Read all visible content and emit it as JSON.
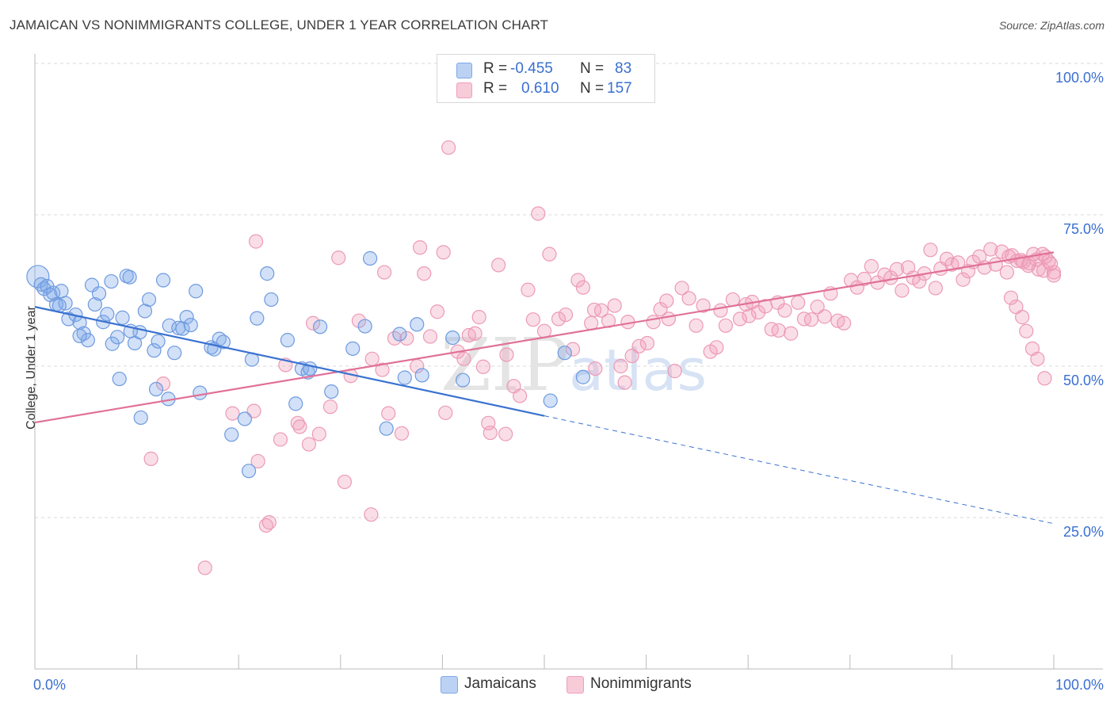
{
  "title": "JAMAICAN VS NONIMMIGRANTS COLLEGE, UNDER 1 YEAR CORRELATION CHART",
  "source": "Source: ZipAtlas.com",
  "watermark": {
    "zip": "ZIP",
    "atlas": "atlas"
  },
  "legend": {
    "series1": {
      "r_label": "R =",
      "r_value": "-0.455",
      "n_label": "N =",
      "n_value": "83"
    },
    "series2": {
      "r_label": "R =",
      "r_value": "0.610",
      "n_label": "N =",
      "n_value": "157"
    }
  },
  "chart_data": {
    "type": "scatter",
    "title": "JAMAICAN VS NONIMMIGRANTS COLLEGE, UNDER 1 YEAR CORRELATION CHART",
    "xlabel": "",
    "ylabel": "College, Under 1 year",
    "xlim": [
      0,
      100
    ],
    "ylim": [
      0,
      100
    ],
    "x_tick_labels": [
      "0.0%",
      "100.0%"
    ],
    "y_tick_labels": [
      "100.0%",
      "75.0%",
      "50.0%",
      "25.0%"
    ],
    "y_ticks": [
      100,
      75,
      50,
      25
    ],
    "colors": {
      "jamaicans": "#7fa8e8",
      "nonimmigrants": "#f0a0bb",
      "blue_line": "#3a72d0",
      "pink_line": "#e07198",
      "tick_text": "#3a6fd0"
    },
    "series": [
      {
        "name": "Jamaicans",
        "color": "#7fa8e8",
        "trend": {
          "x0": 0,
          "y0": 59.8,
          "x1": 50,
          "y1": 41.8,
          "dash_to_x": 100,
          "dash_to_y": 24
        },
        "points": [
          [
            0.3,
            64.8
          ],
          [
            0.6,
            63.5
          ],
          [
            0.9,
            62.8
          ],
          [
            1.2,
            63.2
          ],
          [
            1.5,
            61.8
          ],
          [
            1.8,
            62.1
          ],
          [
            2.1,
            60.2
          ],
          [
            2.6,
            62.4
          ],
          [
            3.0,
            60.4
          ],
          [
            3.3,
            57.8
          ],
          [
            4.0,
            58.5
          ],
          [
            4.4,
            57.2
          ],
          [
            4.8,
            55.4
          ],
          [
            5.2,
            54.3
          ],
          [
            5.6,
            63.4
          ],
          [
            5.9,
            60.2
          ],
          [
            6.3,
            62.0
          ],
          [
            6.7,
            57.3
          ],
          [
            7.1,
            58.6
          ],
          [
            7.6,
            53.7
          ],
          [
            8.1,
            54.8
          ],
          [
            8.6,
            58.0
          ],
          [
            9.0,
            64.9
          ],
          [
            9.3,
            64.7
          ],
          [
            9.8,
            53.8
          ],
          [
            10.3,
            55.6
          ],
          [
            10.8,
            59.1
          ],
          [
            11.2,
            61.0
          ],
          [
            11.7,
            52.6
          ],
          [
            12.1,
            54.1
          ],
          [
            12.6,
            64.2
          ],
          [
            13.2,
            56.7
          ],
          [
            13.7,
            52.2
          ],
          [
            14.1,
            56.3
          ],
          [
            14.5,
            56.2
          ],
          [
            14.9,
            58.1
          ],
          [
            15.3,
            56.8
          ],
          [
            15.8,
            62.4
          ],
          [
            16.2,
            45.6
          ],
          [
            17.3,
            53.1
          ],
          [
            17.6,
            52.8
          ],
          [
            18.1,
            54.5
          ],
          [
            18.5,
            54.0
          ],
          [
            19.3,
            38.7
          ],
          [
            20.6,
            41.3
          ],
          [
            21.0,
            32.7
          ],
          [
            21.3,
            51.1
          ],
          [
            21.8,
            57.9
          ],
          [
            22.8,
            65.3
          ],
          [
            23.2,
            61.0
          ],
          [
            24.8,
            54.3
          ],
          [
            25.6,
            43.8
          ],
          [
            26.2,
            49.6
          ],
          [
            26.8,
            49.0
          ],
          [
            27.0,
            49.6
          ],
          [
            28.0,
            56.5
          ],
          [
            29.1,
            45.8
          ],
          [
            31.2,
            52.9
          ],
          [
            32.4,
            56.6
          ],
          [
            32.9,
            67.8
          ],
          [
            34.5,
            39.7
          ],
          [
            35.8,
            55.3
          ],
          [
            36.3,
            48.1
          ],
          [
            37.5,
            56.9
          ],
          [
            38.0,
            48.5
          ],
          [
            41.0,
            54.7
          ],
          [
            42.0,
            47.7
          ],
          [
            50.6,
            44.3
          ],
          [
            52.0,
            52.2
          ],
          [
            53.8,
            48.2
          ],
          [
            2.4,
            60.0
          ],
          [
            8.3,
            47.9
          ],
          [
            9.4,
            55.8
          ],
          [
            10.4,
            41.5
          ],
          [
            13.1,
            44.6
          ],
          [
            11.9,
            46.2
          ],
          [
            7.5,
            64.0
          ],
          [
            4.4,
            55.0
          ]
        ]
      },
      {
        "name": "Nonimmigrants",
        "color": "#f0a0bb",
        "trend": {
          "x0": 0,
          "y0": 40.7,
          "x1": 100,
          "y1": 68.8
        },
        "points": [
          [
            11.4,
            34.7
          ],
          [
            12.6,
            47.1
          ],
          [
            16.7,
            16.7
          ],
          [
            19.4,
            42.2
          ],
          [
            21.5,
            42.6
          ],
          [
            21.7,
            70.6
          ],
          [
            21.9,
            34.3
          ],
          [
            22.7,
            23.7
          ],
          [
            23.0,
            24.2
          ],
          [
            24.1,
            37.9
          ],
          [
            24.6,
            50.2
          ],
          [
            25.8,
            40.6
          ],
          [
            26.0,
            40.0
          ],
          [
            26.9,
            37.1
          ],
          [
            27.3,
            57.1
          ],
          [
            27.9,
            38.8
          ],
          [
            29.0,
            43.3
          ],
          [
            29.8,
            67.9
          ],
          [
            30.4,
            30.9
          ],
          [
            31.0,
            48.4
          ],
          [
            31.8,
            57.5
          ],
          [
            33.0,
            25.5
          ],
          [
            33.1,
            51.2
          ],
          [
            34.1,
            49.4
          ],
          [
            34.3,
            65.5
          ],
          [
            34.7,
            42.2
          ],
          [
            35.3,
            54.6
          ],
          [
            36.0,
            38.9
          ],
          [
            36.5,
            54.6
          ],
          [
            37.5,
            50.0
          ],
          [
            37.8,
            69.6
          ],
          [
            38.2,
            65.3
          ],
          [
            38.8,
            54.9
          ],
          [
            39.5,
            59.0
          ],
          [
            40.1,
            68.8
          ],
          [
            40.3,
            42.3
          ],
          [
            40.6,
            86.1
          ],
          [
            41.5,
            52.4
          ],
          [
            42.1,
            51.2
          ],
          [
            42.6,
            55.1
          ],
          [
            43.2,
            55.4
          ],
          [
            43.6,
            58.1
          ],
          [
            44.0,
            49.9
          ],
          [
            44.7,
            39.0
          ],
          [
            45.5,
            66.7
          ],
          [
            46.3,
            51.9
          ],
          [
            47.0,
            46.7
          ],
          [
            47.6,
            45.1
          ],
          [
            48.4,
            62.6
          ],
          [
            48.9,
            57.7
          ],
          [
            49.4,
            75.2
          ],
          [
            50.0,
            55.8
          ],
          [
            50.5,
            68.5
          ],
          [
            51.4,
            57.8
          ],
          [
            52.1,
            58.5
          ],
          [
            52.8,
            52.8
          ],
          [
            53.3,
            64.2
          ],
          [
            53.8,
            63.0
          ],
          [
            54.6,
            57.1
          ],
          [
            54.9,
            59.3
          ],
          [
            55.6,
            59.2
          ],
          [
            56.3,
            57.5
          ],
          [
            56.9,
            60.0
          ],
          [
            57.5,
            50.0
          ],
          [
            57.9,
            47.3
          ],
          [
            58.2,
            57.3
          ],
          [
            58.6,
            51.7
          ],
          [
            59.3,
            53.3
          ],
          [
            60.1,
            53.8
          ],
          [
            60.7,
            57.3
          ],
          [
            61.4,
            59.4
          ],
          [
            62.2,
            57.8
          ],
          [
            62.8,
            49.2
          ],
          [
            63.5,
            62.9
          ],
          [
            64.2,
            61.2
          ],
          [
            64.9,
            56.7
          ],
          [
            65.6,
            60.0
          ],
          [
            66.3,
            52.4
          ],
          [
            66.9,
            53.1
          ],
          [
            67.3,
            59.2
          ],
          [
            67.8,
            56.7
          ],
          [
            68.5,
            61.0
          ],
          [
            69.2,
            57.8
          ],
          [
            69.8,
            60.2
          ],
          [
            70.4,
            60.6
          ],
          [
            71.0,
            58.9
          ],
          [
            71.7,
            59.9
          ],
          [
            72.3,
            56.1
          ],
          [
            72.9,
            60.5
          ],
          [
            73.6,
            59.2
          ],
          [
            74.2,
            55.4
          ],
          [
            74.9,
            60.5
          ],
          [
            75.5,
            57.8
          ],
          [
            76.2,
            57.7
          ],
          [
            76.8,
            59.8
          ],
          [
            77.5,
            58.2
          ],
          [
            78.1,
            62.0
          ],
          [
            78.8,
            57.5
          ],
          [
            79.4,
            57.1
          ],
          [
            80.1,
            64.2
          ],
          [
            80.7,
            63.0
          ],
          [
            81.4,
            64.4
          ],
          [
            82.1,
            66.5
          ],
          [
            82.7,
            63.8
          ],
          [
            83.4,
            65.1
          ],
          [
            84.0,
            64.6
          ],
          [
            84.6,
            66.0
          ],
          [
            85.1,
            62.5
          ],
          [
            85.7,
            66.3
          ],
          [
            86.2,
            64.6
          ],
          [
            86.8,
            64.0
          ],
          [
            87.3,
            65.3
          ],
          [
            87.9,
            69.2
          ],
          [
            88.4,
            62.9
          ],
          [
            88.9,
            66.1
          ],
          [
            89.5,
            67.7
          ],
          [
            90.0,
            66.8
          ],
          [
            90.6,
            67.1
          ],
          [
            91.1,
            64.3
          ],
          [
            91.6,
            65.7
          ],
          [
            92.1,
            67.2
          ],
          [
            92.7,
            68.1
          ],
          [
            93.2,
            66.3
          ],
          [
            93.8,
            69.3
          ],
          [
            94.3,
            66.8
          ],
          [
            94.9,
            68.9
          ],
          [
            95.4,
            65.5
          ],
          [
            95.9,
            68.3
          ],
          [
            96.4,
            67.4
          ],
          [
            97.0,
            67.2
          ],
          [
            97.5,
            66.6
          ],
          [
            98.0,
            68.5
          ],
          [
            98.5,
            66.0
          ],
          [
            99.0,
            65.8
          ],
          [
            99.5,
            67.3
          ],
          [
            100.0,
            65.5
          ],
          [
            95.6,
            68.1
          ],
          [
            96.8,
            67.5
          ],
          [
            97.6,
            67.0
          ],
          [
            98.3,
            67.6
          ],
          [
            98.9,
            68.5
          ],
          [
            99.2,
            68.1
          ],
          [
            99.7,
            66.9
          ],
          [
            100.0,
            65.0
          ],
          [
            95.8,
            61.3
          ],
          [
            96.3,
            59.8
          ],
          [
            96.9,
            58.1
          ],
          [
            97.3,
            55.8
          ],
          [
            97.9,
            52.9
          ],
          [
            98.4,
            51.2
          ],
          [
            99.1,
            48.0
          ],
          [
            70.1,
            58.3
          ],
          [
            73.0,
            55.9
          ],
          [
            62.0,
            60.8
          ],
          [
            55.0,
            49.6
          ],
          [
            46.2,
            38.8
          ],
          [
            44.5,
            40.6
          ]
        ]
      }
    ]
  },
  "axis": {
    "x_min_label": "0.0%",
    "x_max_label": "100.0%"
  },
  "bottom_legend": {
    "series1": "Jamaicans",
    "series2": "Nonimmigrants"
  }
}
